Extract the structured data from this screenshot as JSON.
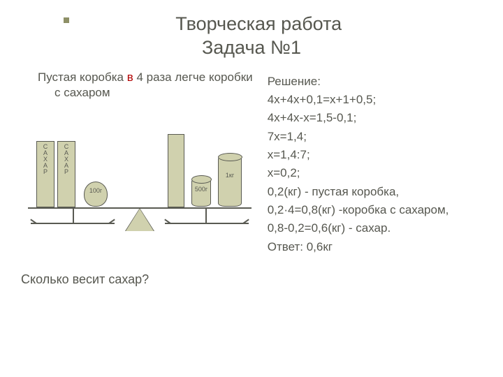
{
  "title": {
    "line1": "Творческая работа",
    "line2": "Задача №1"
  },
  "problem": {
    "pre": "Пустая коробка ",
    "accent": "в",
    "post": " 4 раза легче коробки с сахаром"
  },
  "question": "Сколько весит сахар?",
  "labels": {
    "sugar_vertical": "С\nА\nХ\nА\nР",
    "w100": "100г",
    "w500": "500г",
    "w1kg": "1кг"
  },
  "solution": {
    "heading": "Решение:",
    "lines": [
      "4х+4х+0,1=х+1+0,5;",
      "4х+4х-х=1,5-0,1;",
      "7х=1,4;",
      "х=1,4:7;",
      "х=0,2;",
      "0,2(кг) - пустая коробка,",
      "0,2·4=0,8(кг) -коробка с сахаром,",
      "0,8-0,2=0,6(кг) - сахар.",
      "Ответ: 0,6кг"
    ]
  },
  "colors": {
    "shape_fill": "#d0d1ae",
    "shape_stroke": "#595a52",
    "text": "#56574f",
    "accent": "#b10000",
    "bullet": "#8e9067",
    "background": "#ffffff"
  },
  "figure": {
    "type": "infographic",
    "description": "balance scale: left pan has two sugar boxes + 100g weight; right pan has one box + 500g cylinder + 1kg cylinder",
    "left_pan": [
      {
        "item": "sugar-box",
        "label": "САХАР"
      },
      {
        "item": "sugar-box",
        "label": "САХАР"
      },
      {
        "item": "round-weight",
        "label": "100г"
      }
    ],
    "right_pan": [
      {
        "item": "box"
      },
      {
        "item": "cylinder",
        "label": "500г"
      },
      {
        "item": "cylinder",
        "label": "1кг"
      }
    ]
  }
}
